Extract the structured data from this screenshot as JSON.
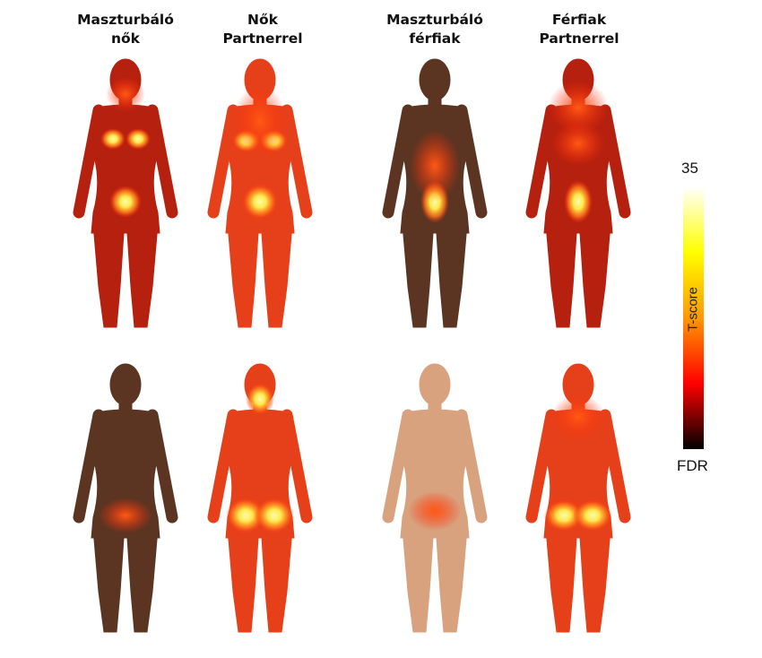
{
  "columns": [
    {
      "title_line1": "Maszturbáló",
      "title_line2": "nők"
    },
    {
      "title_line1": "Nők",
      "title_line2": "Partnerrel"
    },
    {
      "title_line1": "Maszturbáló",
      "title_line2": "férfiak"
    },
    {
      "title_line1": "Férfiak",
      "title_line2": "Partnerrel"
    }
  ],
  "rows": [
    "front",
    "back"
  ],
  "colorbar": {
    "max_label": "35",
    "min_label": "FDR",
    "axis_label": "T-score",
    "colors": [
      "#000000",
      "#ff0000",
      "#ff9900",
      "#ffff00",
      "#ffffff"
    ]
  },
  "colors": {
    "skin_light": "#d9a27e",
    "skin_dark_nonsig": "#5b3422",
    "heat_low": "#b5200f",
    "heat_mid": "#e6401a",
    "heat_high": "#ffe94a"
  }
}
